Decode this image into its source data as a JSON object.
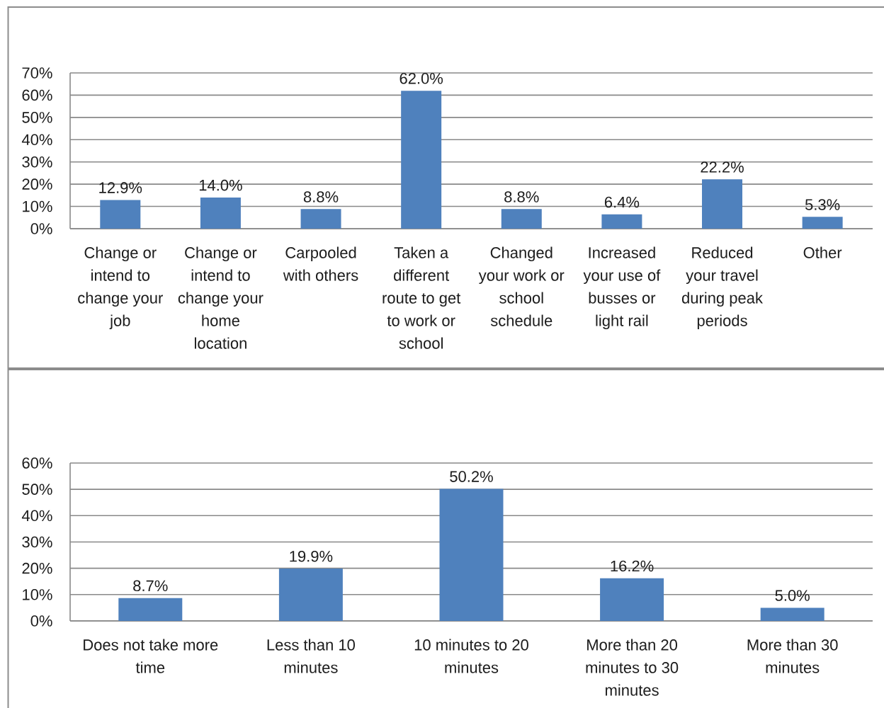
{
  "chart_data": [
    {
      "type": "bar",
      "categories": [
        "Change or intend to change your job",
        "Change or intend to change your home location",
        "Carpooled with others",
        "Taken a different route to get to work or school",
        "Changed your work or school schedule",
        "Increased your use of busses or light rail",
        "Reduced your travel during peak periods",
        "Other"
      ],
      "values": [
        12.9,
        14.0,
        8.8,
        62.0,
        8.8,
        6.4,
        22.2,
        5.3
      ],
      "color": "#4f81bd",
      "value_labels": [
        "12.9%",
        "14.0%",
        "8.8%",
        "62.0%",
        "8.8%",
        "6.4%",
        "22.2%",
        "5.3%"
      ],
      "ylim": [
        0,
        70
      ],
      "yticks": [
        {
          "value": 0,
          "label": "0%"
        },
        {
          "value": 10,
          "label": "10%"
        },
        {
          "value": 20,
          "label": "20%"
        },
        {
          "value": 30,
          "label": "30%"
        },
        {
          "value": 40,
          "label": "40%"
        },
        {
          "value": 50,
          "label": "50%"
        },
        {
          "value": 60,
          "label": "60%"
        },
        {
          "value": 70,
          "label": "70%"
        }
      ],
      "grid": "y"
    },
    {
      "type": "bar",
      "categories": [
        "Does not take more time",
        "Less than 10 minutes",
        "10 minutes to 20 minutes",
        "More than 20 minutes to 30 minutes",
        "More than 30 minutes"
      ],
      "values": [
        8.7,
        19.9,
        50.2,
        16.2,
        5.0
      ],
      "color": "#4f81bd",
      "value_labels": [
        "8.7%",
        "19.9%",
        "50.2%",
        "16.2%",
        "5.0%"
      ],
      "ylim": [
        0,
        60
      ],
      "yticks": [
        {
          "value": 0,
          "label": "0%"
        },
        {
          "value": 10,
          "label": "10%"
        },
        {
          "value": 20,
          "label": "20%"
        },
        {
          "value": 30,
          "label": "30%"
        },
        {
          "value": 40,
          "label": "40%"
        },
        {
          "value": 50,
          "label": "50%"
        },
        {
          "value": 60,
          "label": "60%"
        }
      ],
      "grid": "y"
    }
  ]
}
